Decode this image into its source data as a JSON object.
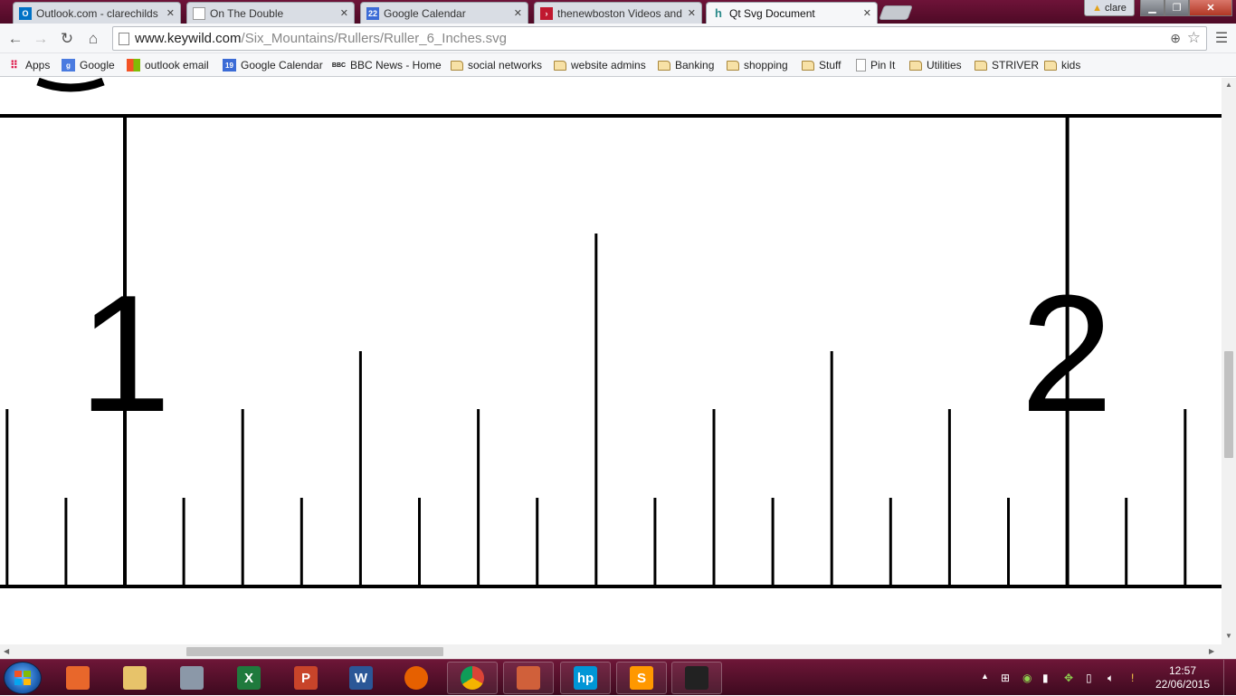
{
  "tabs": [
    {
      "label": "Outlook.com - clarechilds",
      "icon": "outlook-icon",
      "color": "#0072c6"
    },
    {
      "label": "On The Double",
      "icon": "page-icon",
      "color": "#999999"
    },
    {
      "label": "Google Calendar",
      "icon": "calendar-icon",
      "badge": "22",
      "color": "#3b6bd6"
    },
    {
      "label": "thenewboston Videos and",
      "icon": "thenewboston-icon",
      "color": "#c0182f"
    },
    {
      "label": "Qt Svg Document",
      "icon": "qt-icon",
      "color": "#2a8a8a"
    }
  ],
  "user_name": "clare",
  "address": {
    "host": "www.keywild.com",
    "path": "/Six_Mountains/Rullers/Ruller_6_Inches.svg"
  },
  "bookmarks": [
    {
      "label": "Apps",
      "icon": "apps-grid-icon"
    },
    {
      "label": "Google",
      "icon": "google-icon"
    },
    {
      "label": "outlook email",
      "icon": "windows-flag-icon"
    },
    {
      "label": "Google Calendar",
      "icon": "calendar-icon",
      "badge": "19"
    },
    {
      "label": "BBC News - Home",
      "icon": "bbc-icon",
      "badge": "BBC"
    },
    {
      "label": "social networks",
      "icon": "folder-icon"
    },
    {
      "label": "website admins",
      "icon": "folder-icon"
    },
    {
      "label": "Banking",
      "icon": "folder-icon"
    },
    {
      "label": "shopping",
      "icon": "folder-icon"
    },
    {
      "label": "Stuff",
      "icon": "folder-icon"
    },
    {
      "label": "Pin It",
      "icon": "page-icon"
    },
    {
      "label": "Utilities",
      "icon": "folder-icon"
    },
    {
      "label": "STRIVER",
      "icon": "folder-icon"
    },
    {
      "label": "kids",
      "icon": "folder-icon"
    }
  ],
  "ruler": {
    "labels": [
      "1",
      "2"
    ]
  },
  "taskbar": {
    "apps": [
      {
        "name": "media-player-icon"
      },
      {
        "name": "file-explorer-icon"
      },
      {
        "name": "calculator-icon"
      },
      {
        "name": "excel-icon",
        "glyph": "X"
      },
      {
        "name": "powerpoint-icon",
        "glyph": "P"
      },
      {
        "name": "word-icon",
        "glyph": "W"
      },
      {
        "name": "firefox-icon"
      },
      {
        "name": "chrome-icon"
      },
      {
        "name": "remote-desktop-icon"
      },
      {
        "name": "hp-icon",
        "glyph": "hp"
      },
      {
        "name": "sublime-text-icon",
        "glyph": "S"
      },
      {
        "name": "eye-app-icon"
      }
    ],
    "time": "12:57",
    "date": "22/06/2015"
  },
  "colors": {
    "taskbar": "#5a0f2e",
    "ruler_ink": "#000000"
  }
}
